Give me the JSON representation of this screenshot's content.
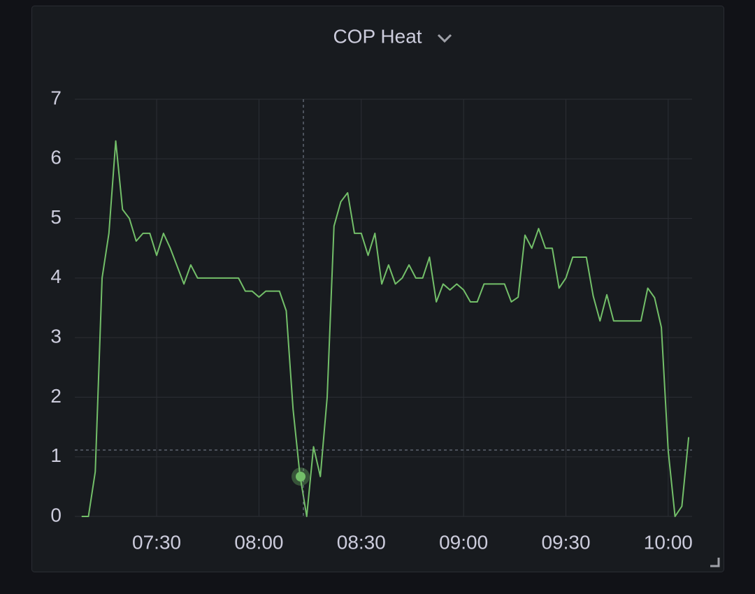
{
  "chart_data": {
    "type": "line",
    "title": "COP Heat",
    "x": [
      "07:08",
      "07:10",
      "07:12",
      "07:14",
      "07:16",
      "07:18",
      "07:20",
      "07:22",
      "07:24",
      "07:26",
      "07:28",
      "07:30",
      "07:32",
      "07:34",
      "07:36",
      "07:38",
      "07:40",
      "07:42",
      "07:44",
      "07:46",
      "07:48",
      "07:50",
      "07:52",
      "07:54",
      "07:56",
      "07:58",
      "08:00",
      "08:02",
      "08:04",
      "08:06",
      "08:08",
      "08:10",
      "08:12",
      "08:14",
      "08:16",
      "08:18",
      "08:20",
      "08:22",
      "08:24",
      "08:26",
      "08:28",
      "08:30",
      "08:32",
      "08:34",
      "08:36",
      "08:38",
      "08:40",
      "08:42",
      "08:44",
      "08:46",
      "08:48",
      "08:50",
      "08:52",
      "08:54",
      "08:56",
      "08:58",
      "09:00",
      "09:02",
      "09:04",
      "09:06",
      "09:08",
      "09:10",
      "09:12",
      "09:14",
      "09:16",
      "09:18",
      "09:20",
      "09:22",
      "09:24",
      "09:26",
      "09:28",
      "09:30",
      "09:32",
      "09:34",
      "09:36",
      "09:38",
      "09:40",
      "09:42",
      "09:44",
      "09:46",
      "09:48",
      "09:50",
      "09:52",
      "09:54",
      "09:56",
      "09:58",
      "10:00",
      "10:02",
      "10:04",
      "10:06"
    ],
    "series": [
      {
        "color": "#73bf69",
        "values": [
          0,
          0,
          0.75,
          4.0,
          4.75,
          6.3,
          5.15,
          5.0,
          4.62,
          4.75,
          4.75,
          4.38,
          4.75,
          4.5,
          4.2,
          3.9,
          4.22,
          4.0,
          4.0,
          4.0,
          4.0,
          4.0,
          4.0,
          4.0,
          3.78,
          3.78,
          3.68,
          3.78,
          3.78,
          3.78,
          3.45,
          1.8,
          0.7,
          0,
          1.17,
          0.67,
          2.0,
          4.87,
          5.28,
          5.43,
          4.75,
          4.75,
          4.38,
          4.75,
          3.9,
          4.22,
          3.9,
          4.0,
          4.22,
          4.0,
          4.0,
          4.35,
          3.6,
          3.9,
          3.8,
          3.9,
          3.8,
          3.6,
          3.6,
          3.9,
          3.9,
          3.9,
          3.9,
          3.6,
          3.68,
          4.72,
          4.5,
          4.83,
          4.5,
          4.5,
          3.83,
          4.0,
          4.35,
          4.35,
          4.35,
          3.7,
          3.28,
          3.72,
          3.28,
          3.28,
          3.28,
          3.28,
          3.28,
          3.83,
          3.67,
          3.17,
          1.1,
          0,
          0.17,
          1.33
        ]
      }
    ],
    "xlim": [
      "07:06",
      "10:07"
    ],
    "xticks": [
      "07:30",
      "08:00",
      "08:30",
      "09:00",
      "09:30",
      "10:00"
    ],
    "ylim": [
      0,
      7
    ],
    "yticks": [
      0,
      1,
      2,
      3,
      4,
      5,
      6,
      7
    ],
    "grid": true
  }
}
